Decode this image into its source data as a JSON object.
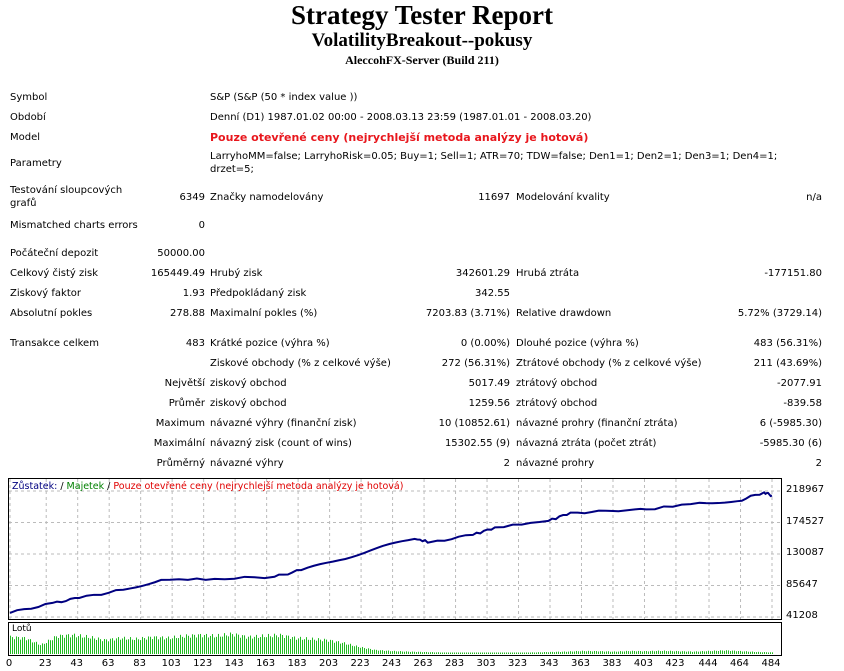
{
  "header": {
    "title": "Strategy Tester Report",
    "expert": "VolatilityBreakout--pokusy",
    "server": "AleccohFX-Server (Build 211)"
  },
  "info": [
    {
      "label": "Symbol",
      "value": "S&P (S&P (50 * index value ))"
    },
    {
      "label": "Období",
      "value": "Denní (D1) 1987.01.02 00:00 - 2008.03.13 23:59 (1987.01.01 - 2008.03.20)"
    },
    {
      "label": "Model",
      "value": "Pouze otevřené ceny (nejrychlejší metoda analýzy je hotová)"
    },
    {
      "label": "Parametry",
      "value": "LarryhoMM=false; LarryhoRisk=0.05; Buy=1; Sell=1; ATR=70; TDW=false; Den1=1; Den2=1; Den3=1; Den4=1; drzet=5;"
    }
  ],
  "bars": {
    "l1": "Testování sloupcových grafů",
    "v1": "6349",
    "l2": "Značky namodelovány",
    "v2": "11697",
    "l3": "Modelování kvality",
    "v3": "n/a"
  },
  "mismatch": {
    "label": "Mismatched charts errors",
    "value": "0"
  },
  "stats": [
    {
      "l1": "Počáteční depozit",
      "v1": "50000.00",
      "l2": "",
      "v2": "",
      "l3": "",
      "v3": ""
    },
    {
      "l1": "Celkový čistý zisk",
      "v1": "165449.49",
      "l2": "Hrubý zisk",
      "v2": "342601.29",
      "l3": "Hrubá ztráta",
      "v3": "-177151.80"
    },
    {
      "l1": "Ziskový faktor",
      "v1": "1.93",
      "l2": "Předpokládaný zisk",
      "v2": "342.55",
      "l3": "",
      "v3": ""
    },
    {
      "l1": "Absolutní pokles",
      "v1": "278.88",
      "l2": "Maximalní pokles (%)",
      "v2": "7203.83 (3.71%)",
      "l3": "Relative drawdown",
      "v3": "5.72% (3729.14)"
    }
  ],
  "trades": [
    {
      "l1": "Transakce celkem",
      "v1": "483",
      "l2": "Krátké pozice (výhra %)",
      "v2": "0 (0.00%)",
      "l3": "Dlouhé pozice (výhra %)",
      "v3": "483 (56.31%)"
    },
    {
      "l1": "",
      "v1": "",
      "l2": "Ziskové obchody (% z celkové výše)",
      "v2": "272 (56.31%)",
      "l3": "Ztrátové obchody (% z celkové výše)",
      "v3": "211 (43.69%)"
    },
    {
      "l1": "",
      "v1": "Největší",
      "l2": "ziskový obchod",
      "v2": "5017.49",
      "l3": "ztrátový obchod",
      "v3": "-2077.91"
    },
    {
      "l1": "",
      "v1": "Průměr",
      "l2": "ziskový obchod",
      "v2": "1259.56",
      "l3": "ztrátový obchod",
      "v3": "-839.58"
    },
    {
      "l1": "",
      "v1": "Maximum",
      "l2": "návazné výhry (finanční zisk)",
      "v2": "10 (10852.61)",
      "l3": "návazné prohry (finanční ztráta)",
      "v3": "6 (-5985.30)"
    },
    {
      "l1": "",
      "v1": "Maximální",
      "l2": "návazný zisk (count of wins)",
      "v2": "15302.55 (9)",
      "l3": "návazná ztráta (počet ztrát)",
      "v3": "-5985.30 (6)"
    },
    {
      "l1": "",
      "v1": "Průměrný",
      "l2": "návazné výhry",
      "v2": "2",
      "l3": "návazné prohry",
      "v3": "2"
    }
  ],
  "chart_data": {
    "type": "line",
    "legend": {
      "balance": "Zůstatek:",
      "sep": " / ",
      "equity": "Majetek",
      "sep2": " / ",
      "model": "Pouze otevřené ceny (nejrychlejší metoda analýzy je hotová)"
    },
    "colors": {
      "balance": "#000080",
      "equity": "#008000",
      "model": "#e00000",
      "lots": "#22bb22"
    },
    "x": [
      0,
      27,
      44,
      72,
      96,
      130,
      168,
      185,
      209,
      233,
      257,
      267,
      294,
      308,
      342,
      356,
      383,
      404,
      438,
      462,
      479,
      484
    ],
    "y": [
      47000,
      61100,
      68000,
      79600,
      93500,
      95000,
      98000,
      107400,
      121300,
      138400,
      151400,
      146800,
      157000,
      167600,
      176800,
      188400,
      190700,
      193000,
      202300,
      204600,
      217100,
      212500
    ],
    "ylim": [
      41208,
      218967
    ],
    "yticks": [
      "218967",
      "174527",
      "130087",
      "85647",
      "41208"
    ],
    "xlim": [
      0,
      484
    ],
    "xticks": [
      "0",
      "23",
      "43",
      "63",
      "83",
      "103",
      "123",
      "143",
      "163",
      "183",
      "203",
      "223",
      "243",
      "263",
      "283",
      "303",
      "323",
      "343",
      "363",
      "383",
      "403",
      "423",
      "444",
      "464",
      "484"
    ],
    "lots_label": "Lotů",
    "lots_profile": [
      0.85,
      0.8,
      0.45,
      0.9,
      0.95,
      0.85,
      0.7,
      0.8,
      0.75,
      0.85,
      0.8,
      0.9,
      0.95,
      0.9,
      1.0,
      0.85,
      0.9,
      0.95,
      0.8,
      0.75,
      0.7,
      0.55,
      0.35,
      0.2,
      0.15,
      0.12,
      0.1,
      0.08,
      0.05,
      0.05,
      0.04,
      0.05,
      0.06,
      0.08,
      0.1,
      0.12,
      0.15,
      0.14,
      0.12,
      0.15,
      0.14,
      0.16,
      0.14,
      0.12,
      0.15,
      0.18,
      0.14,
      0.1,
      0.08
    ]
  }
}
